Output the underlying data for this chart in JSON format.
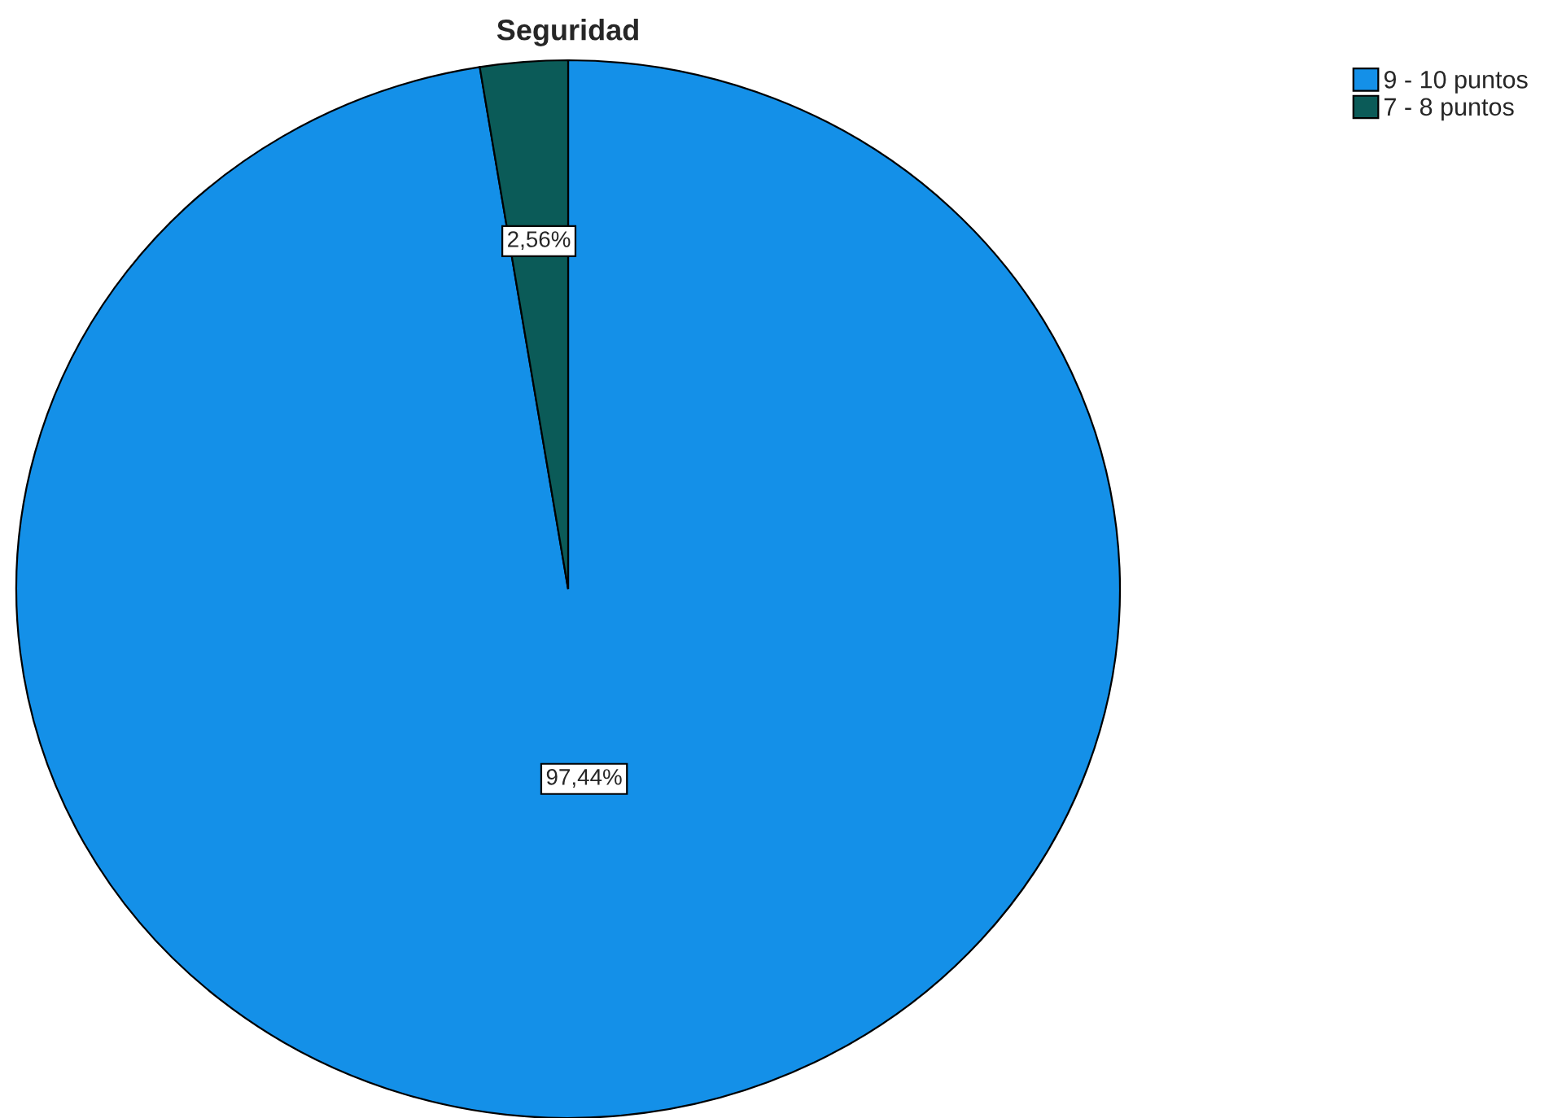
{
  "chart_data": {
    "type": "pie",
    "title": "Seguridad",
    "categories": [
      "9 - 10 puntos",
      "7 - 8 puntos"
    ],
    "values": [
      97.44,
      2.56
    ],
    "value_labels": [
      "97,44%",
      "2,56%"
    ],
    "colors": [
      "#1490e8",
      "#0b5b58"
    ],
    "legend": "top right"
  }
}
